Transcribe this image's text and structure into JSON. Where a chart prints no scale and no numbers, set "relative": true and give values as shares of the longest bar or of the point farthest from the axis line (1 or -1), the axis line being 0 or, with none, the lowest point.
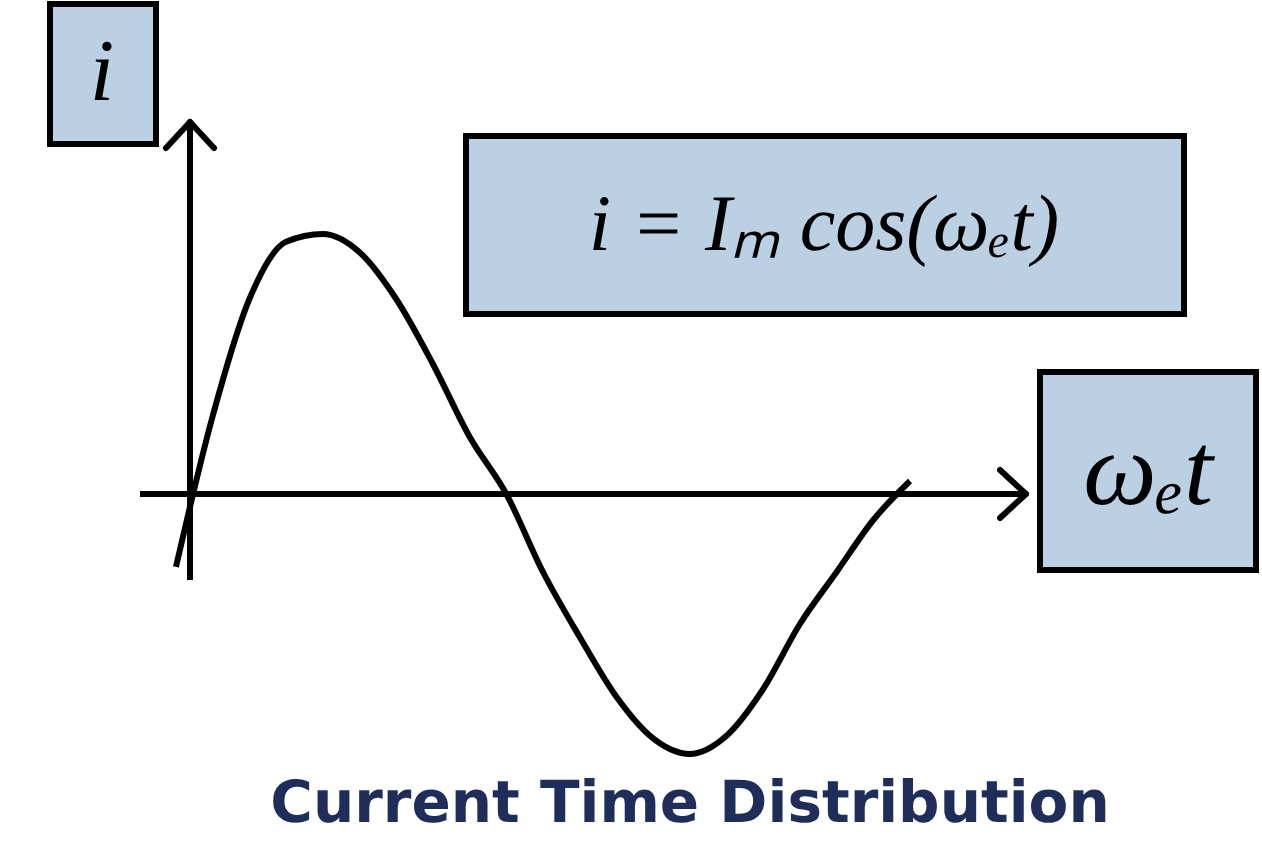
{
  "chart_data": {
    "type": "line",
    "relative": true,
    "title": "Current Time Distribution",
    "xlabel": "ωₑt",
    "ylabel": "i",
    "annotations": [
      "i = Iₘ cos(ωₑt)"
    ],
    "categories": [
      null,
      null,
      null,
      null,
      null,
      null,
      null,
      null,
      null,
      null,
      null,
      null,
      null,
      null,
      null,
      null,
      null,
      null,
      null,
      null,
      null
    ],
    "series": [
      {
        "color": "#000000",
        "values": [
          -0.28,
          0.3,
          0.75,
          0.97,
          1.0,
          0.93,
          0.75,
          0.5,
          0.22,
          0,
          -0.3,
          -0.55,
          -0.78,
          -0.94,
          -1.0,
          -0.93,
          -0.75,
          -0.5,
          -0.3,
          -0.1,
          0.05
        ]
      }
    ]
  }
}
